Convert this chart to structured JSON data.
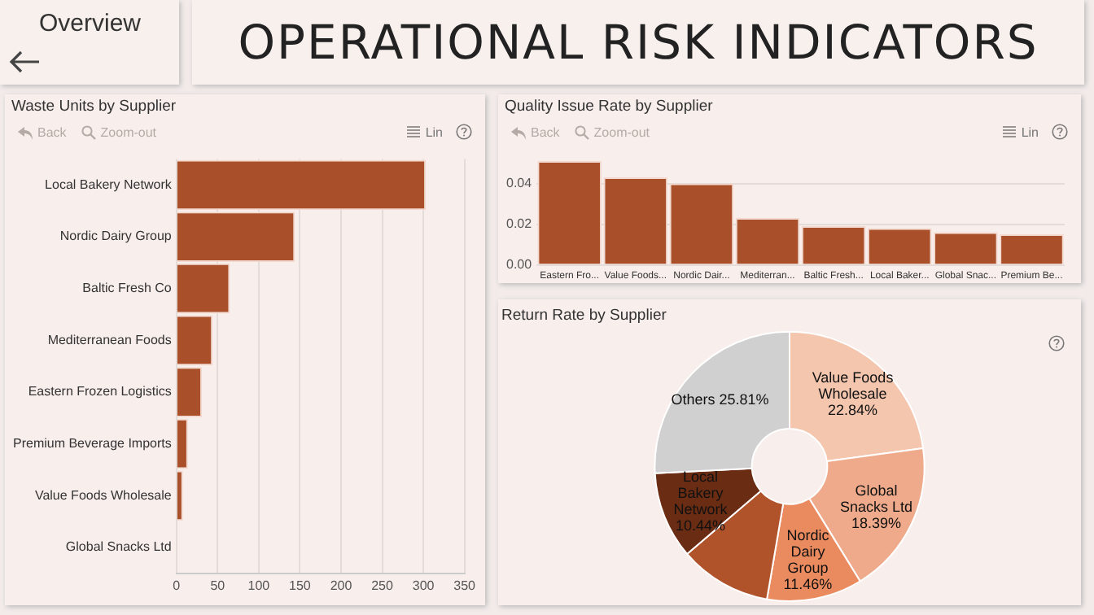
{
  "chart_data": [
    {
      "type": "other",
      "title": "OPERATIONAL RISK INDICATORS",
      "annotations": [
        "Overview"
      ]
    },
    {
      "type": "bar",
      "title": "Waste Units by Supplier",
      "orientation": "horizontal",
      "categories": [
        "Local Bakery Network",
        "Nordic Dairy Group",
        "Baltic Fresh Co",
        "Mediterranean Foods",
        "Eastern Frozen Logistics",
        "Premium Beverage Imports",
        "Value Foods Wholesale",
        "Global Snacks Ltd"
      ],
      "values": [
        303,
        144,
        65,
        44,
        31,
        14,
        8,
        0
      ],
      "color": "#a9502a",
      "xlim": [
        0,
        350
      ],
      "xticks": [
        0,
        50,
        100,
        150,
        200,
        250,
        300,
        350
      ],
      "grid": "x",
      "annotations": [
        "Back",
        "Zoom-out",
        "Lin"
      ]
    },
    {
      "type": "bar",
      "title": "Quality Issue Rate by Supplier",
      "categories": [
        "Eastern Fro...",
        "Value Foods...",
        "Nordic Dair...",
        "Mediterran...",
        "Baltic Fresh...",
        "Local Baker...",
        "Global Snac...",
        "Premium Be..."
      ],
      "values": [
        0.051,
        0.043,
        0.04,
        0.023,
        0.019,
        0.018,
        0.016,
        0.015
      ],
      "color": "#a9502a",
      "ylim": [
        0,
        0.052
      ],
      "yticks": [
        {
          "value": 0,
          "label": "0.00"
        },
        {
          "value": 0.02,
          "label": "0.02"
        },
        {
          "value": 0.04,
          "label": "0.04"
        }
      ],
      "grid": "y",
      "annotations": [
        "Back",
        "Zoom-out",
        "Lin"
      ]
    },
    {
      "type": "donut",
      "title": "Return Rate by Supplier",
      "categories": [
        "Value Foods Wholesale",
        "Global Snacks Ltd",
        "Nordic Dairy Group",
        null,
        "Local Bakery Network",
        "Others"
      ],
      "values": [
        22.84,
        18.39,
        11.46,
        11.06,
        10.44,
        25.81
      ],
      "colors": [
        "#f4c6ae",
        "#eeaa8a",
        "#ea8b5f",
        "#b0532a",
        "#6a2c13",
        "#d0d0d0"
      ],
      "value_labels": [
        "22.84%",
        "18.39%",
        "11.46%",
        null,
        "10.44%",
        "25.81%"
      ]
    }
  ]
}
